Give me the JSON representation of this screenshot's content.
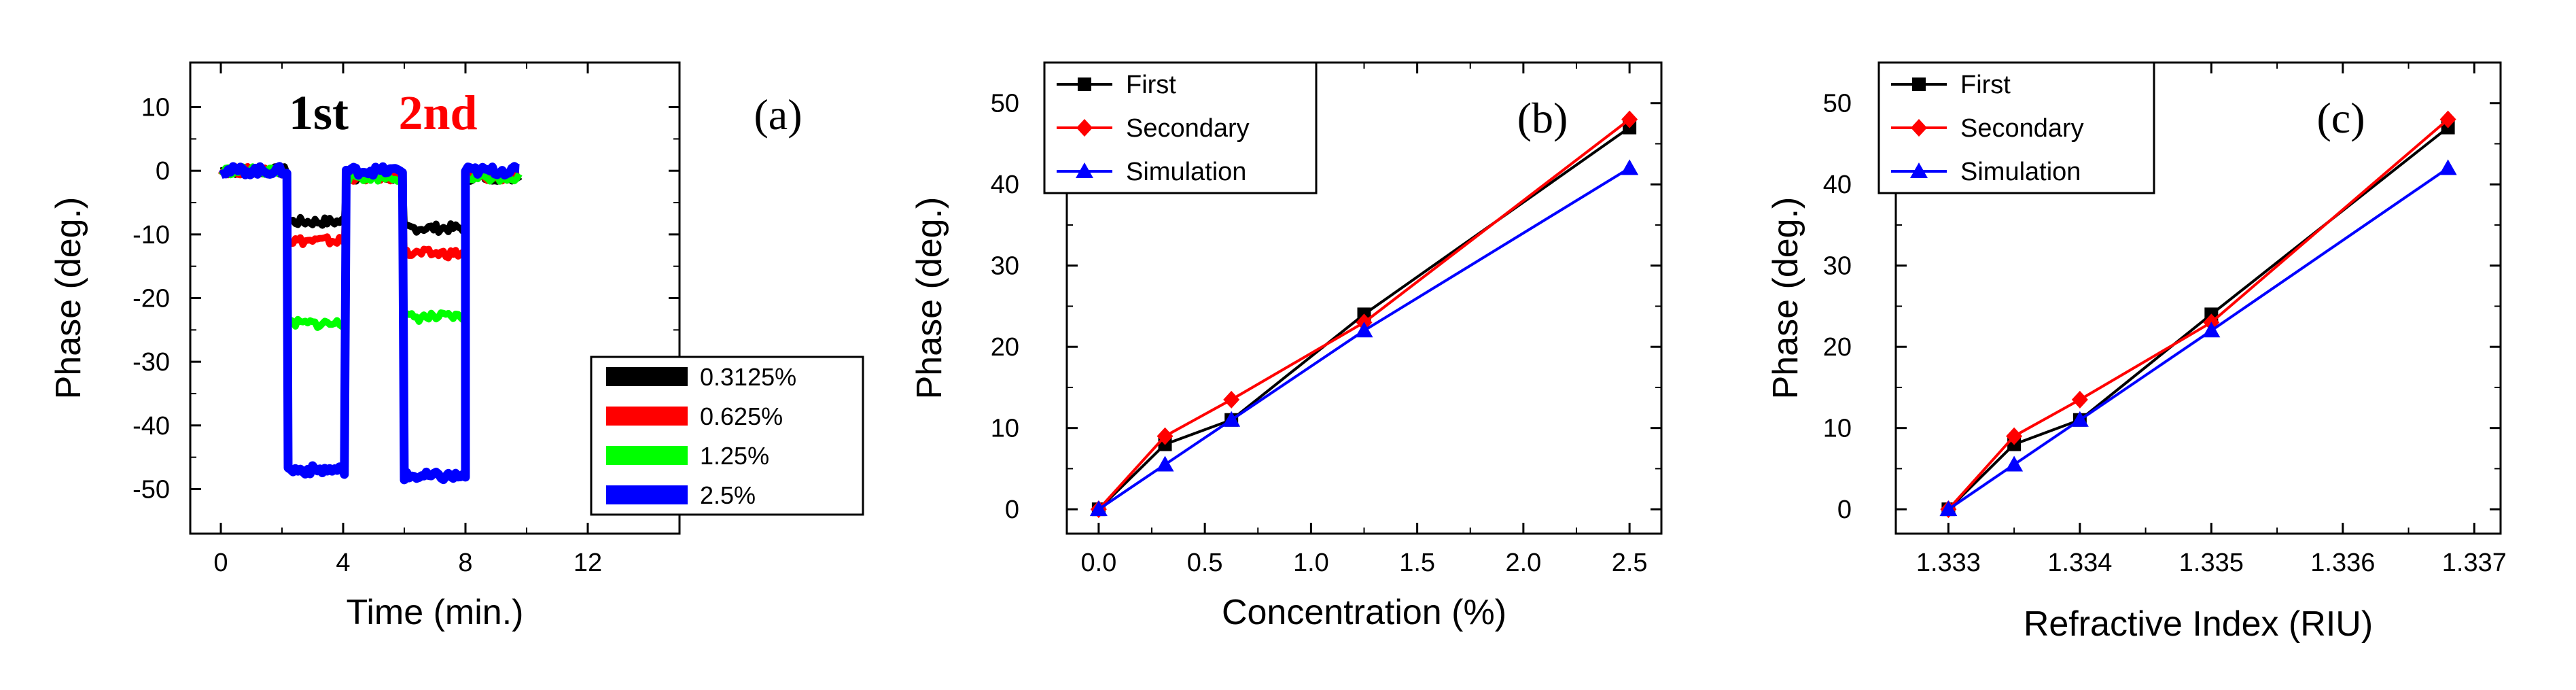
{
  "chart_data": [
    {
      "id": "a",
      "type": "line",
      "panel_label": "(a)",
      "xlabel": "Time (min.)",
      "ylabel": "Phase (deg.)",
      "xlim": [
        -1,
        15
      ],
      "ylim": [
        -57,
        17
      ],
      "xticks": [
        "0",
        "4",
        "8",
        "12"
      ],
      "yticks": [
        "10",
        "0",
        "-10",
        "-20",
        "-30",
        "-40",
        "-50"
      ],
      "xtick_values": [
        0,
        4,
        8,
        12
      ],
      "ytick_values": [
        10,
        0,
        -10,
        -20,
        -30,
        -40,
        -50
      ],
      "annotations": [
        {
          "text": "1st",
          "color": "#000000",
          "x": 3.2
        },
        {
          "text": "2nd",
          "color": "#ff0000",
          "x": 7.1
        }
      ],
      "legend": [
        "0.3125%",
        "0.625%",
        "1.25%",
        "2.5%"
      ],
      "series": [
        {
          "name": "0.3125%",
          "color": "#000000",
          "levels": [
            0,
            -8,
            -1,
            -9,
            -1
          ]
        },
        {
          "name": "0.625%",
          "color": "#ff0000",
          "levels": [
            0,
            -11,
            -1,
            -13,
            -1
          ]
        },
        {
          "name": "1.25%",
          "color": "#00ff00",
          "levels": [
            0,
            -24,
            -1,
            -23,
            -1
          ]
        },
        {
          "name": "2.5%",
          "color": "#0000ff",
          "levels": [
            0,
            -47,
            0,
            -48,
            0
          ]
        }
      ],
      "segments_x": [
        [
          0,
          2.2
        ],
        [
          2.2,
          4.1
        ],
        [
          4.1,
          6
        ],
        [
          6,
          8
        ],
        [
          8,
          9.8
        ]
      ]
    },
    {
      "id": "b",
      "type": "line",
      "panel_label": "(b)",
      "xlabel": "Concentration (%)",
      "ylabel": "Phase (deg.)",
      "xlim": [
        -0.15,
        2.65
      ],
      "ylim": [
        -3,
        55
      ],
      "xticks": [
        "0.0",
        "0.5",
        "1.0",
        "1.5",
        "2.0",
        "2.5"
      ],
      "yticks": [
        "0",
        "10",
        "20",
        "30",
        "40",
        "50"
      ],
      "xtick_values": [
        0,
        0.5,
        1.0,
        1.5,
        2.0,
        2.5
      ],
      "ytick_values": [
        0,
        10,
        20,
        30,
        40,
        50
      ],
      "x": [
        0,
        0.3125,
        0.625,
        1.25,
        2.5
      ],
      "series": [
        {
          "name": "First",
          "color": "#000000",
          "marker": "square",
          "values": [
            0,
            8,
            11,
            24,
            47
          ]
        },
        {
          "name": "Secondary",
          "color": "#ff0000",
          "marker": "diamond",
          "values": [
            0,
            9,
            13.5,
            23,
            48
          ]
        },
        {
          "name": "Simulation",
          "color": "#0000ff",
          "marker": "triangle",
          "values": [
            0,
            5.5,
            11,
            22,
            42
          ]
        }
      ]
    },
    {
      "id": "c",
      "type": "line",
      "panel_label": "(c)",
      "xlabel": "Refractive Index (RIU)",
      "ylabel": "Phase (deg.)",
      "xlim": [
        1.3326,
        1.3372
      ],
      "ylim": [
        -3,
        55
      ],
      "xticks": [
        "1.333",
        "1.334",
        "1.335",
        "1.336",
        "1.337"
      ],
      "yticks": [
        "0",
        "10",
        "20",
        "30",
        "40",
        "50"
      ],
      "xtick_values": [
        1.333,
        1.334,
        1.335,
        1.336,
        1.337
      ],
      "ytick_values": [
        0,
        10,
        20,
        30,
        40,
        50
      ],
      "x": [
        1.333,
        1.3335,
        1.334,
        1.335,
        1.3368
      ],
      "series": [
        {
          "name": "First",
          "color": "#000000",
          "marker": "square",
          "values": [
            0,
            8,
            11,
            24,
            47
          ]
        },
        {
          "name": "Secondary",
          "color": "#ff0000",
          "marker": "diamond",
          "values": [
            0,
            9,
            13.5,
            23,
            48
          ]
        },
        {
          "name": "Simulation",
          "color": "#0000ff",
          "marker": "triangle",
          "values": [
            0,
            5.5,
            11,
            22,
            42
          ]
        }
      ]
    }
  ]
}
